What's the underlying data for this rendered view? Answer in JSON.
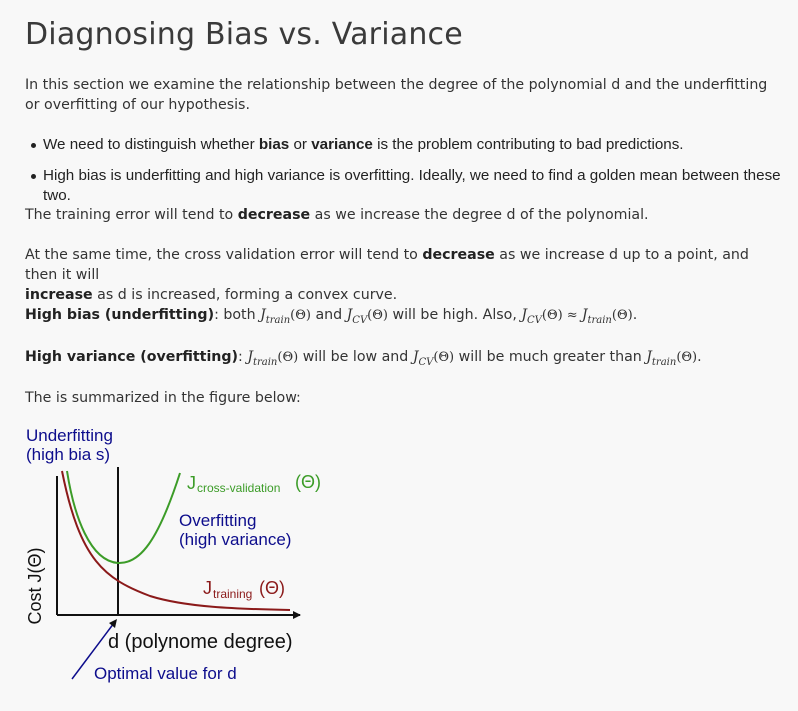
{
  "title": "Diagnosing Bias vs. Variance",
  "intro": "In this section we examine the relationship between the degree of the polynomial d and the underfitting or overfitting of our hypothesis.",
  "bullets": [
    {
      "a": "We need to distinguish whether ",
      "b1": "bias",
      "c": " or ",
      "b2": "variance",
      "d": " is the problem contributing to bad predictions."
    },
    {
      "a": "High bias is underfitting and high variance is overfitting. Ideally, we need to find a golden mean between these two."
    }
  ],
  "p_train": {
    "a": "The training error will tend to ",
    "b": "decrease",
    "c": " as we increase the degree d of the polynomial."
  },
  "p_cv": {
    "a": "At the same time, the cross validation error will tend to ",
    "b1": "decrease",
    "c": " as we increase d up to a point, and then it will",
    "b2": "increase",
    "d": " as d is increased, forming a convex curve."
  },
  "p_bias": {
    "label": "High bias (underfitting)",
    "a": ": both ",
    "m1": "J",
    "s1": "train",
    "u1": "(Θ)",
    "b": " and ",
    "m2": "J",
    "s2": "CV",
    "u2": "(Θ)",
    "c": " will be high. Also, ",
    "m3": "J",
    "s3": "CV",
    "u3": "(Θ) ≈ ",
    "m4": "J",
    "s4": "train",
    "u4": "(Θ)",
    "d": "."
  },
  "p_var": {
    "label": "High variance (overfitting)",
    "a": ": ",
    "m1": "J",
    "s1": "train",
    "u1": "(Θ)",
    "b": " will be low and ",
    "m2": "J",
    "s2": "CV",
    "u2": "(Θ)",
    "c": " will be much greater than ",
    "m3": "J",
    "s3": "train",
    "u3": "(Θ)",
    "d": "."
  },
  "summary": "The is summarized in the figure below:",
  "figure": {
    "underfit1": "Underfitting",
    "underfit2": "(high bia s)",
    "cv_J": "J",
    "cv_sub": "cross-validation",
    "cv_theta": "(Θ)",
    "overfit1": "Overfitting",
    "overfit2": "(high variance)",
    "ylabel": "Cost J(Θ)",
    "train_J": "J",
    "train_sub": "training",
    "train_theta": "(Θ)",
    "xlabel": "d (polynome degree)",
    "optimal": "Optimal value for d",
    "colors": {
      "navy": "#0d0d8c",
      "green": "#3c9c28",
      "darkred": "#8b1a1a"
    }
  }
}
